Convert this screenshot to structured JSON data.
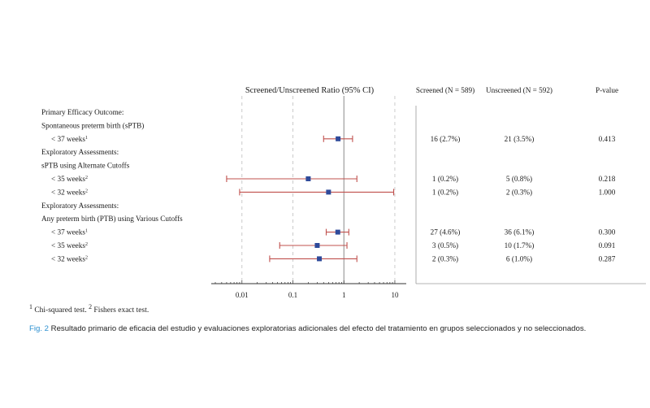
{
  "chart_data": {
    "type": "forest",
    "title": "Screened/Unscreened Ratio (95% CI)",
    "column_headers": [
      "Screened (N = 589)",
      "Unscreened (N = 592)",
      "P-value"
    ],
    "x_scale": "log",
    "xlim": [
      0.003,
      15
    ],
    "x_ticks": [
      0.01,
      0.1,
      1,
      10
    ],
    "x_tick_labels": [
      "0.01",
      "0.1",
      "1",
      "10"
    ],
    "reference_line": 1,
    "colors": {
      "marker": "#2e4a9a",
      "ci": "#c0504d",
      "grid": "#bdbdbd"
    },
    "rows": [
      {
        "label": "Primary Efficacy Outcome:",
        "kind": "header"
      },
      {
        "label": "Spontaneous preterm birth (sPTB)",
        "kind": "header"
      },
      {
        "label": "< 37 weeks",
        "sup": "1",
        "kind": "data",
        "est": 0.77,
        "lo": 0.4,
        "hi": 1.48,
        "screened": "16 (2.7%)",
        "unscreened": "21 (3.5%)",
        "p": "0.413"
      },
      {
        "label": "Exploratory Assessments:",
        "kind": "header"
      },
      {
        "label": "sPTB using Alternate Cutoffs",
        "kind": "header"
      },
      {
        "label": "< 35 weeks",
        "sup": "2",
        "kind": "data",
        "est": 0.2,
        "lo": 0.005,
        "hi": 1.8,
        "screened": "1 (0.2%)",
        "unscreened": "5 (0.8%)",
        "p": "0.218"
      },
      {
        "label": "< 32 weeks",
        "sup": "2",
        "kind": "data",
        "est": 0.5,
        "lo": 0.009,
        "hi": 9.5,
        "screened": "1 (0.2%)",
        "unscreened": "2 (0.3%)",
        "p": "1.000"
      },
      {
        "label": "Exploratory Assessments:",
        "kind": "header"
      },
      {
        "label": "Any preterm birth (PTB) using Various Cutoffs",
        "kind": "header"
      },
      {
        "label": "< 37 weeks",
        "sup": "1",
        "kind": "data",
        "est": 0.76,
        "lo": 0.45,
        "hi": 1.25,
        "screened": "27 (4.6%)",
        "unscreened": "36 (6.1%)",
        "p": "0.300"
      },
      {
        "label": "< 35 weeks",
        "sup": "2",
        "kind": "data",
        "est": 0.3,
        "lo": 0.055,
        "hi": 1.15,
        "screened": "3 (0.5%)",
        "unscreened": "10 (1.7%)",
        "p": "0.091"
      },
      {
        "label": "< 32 weeks",
        "sup": "2",
        "kind": "data",
        "est": 0.33,
        "lo": 0.035,
        "hi": 1.8,
        "screened": "2 (0.3%)",
        "unscreened": "6 (1.0%)",
        "p": "0.287"
      }
    ]
  },
  "footnote": {
    "mark1": "1",
    "text1": " Chi-squared test. ",
    "mark2": "2",
    "text2": " Fishers exact test."
  },
  "caption": {
    "label": "Fig. 2",
    "text": " Resultado primario de eficacia del estudio y evaluaciones exploratorias adicionales del efecto del tratamiento en grupos seleccionados y no seleccionados."
  }
}
